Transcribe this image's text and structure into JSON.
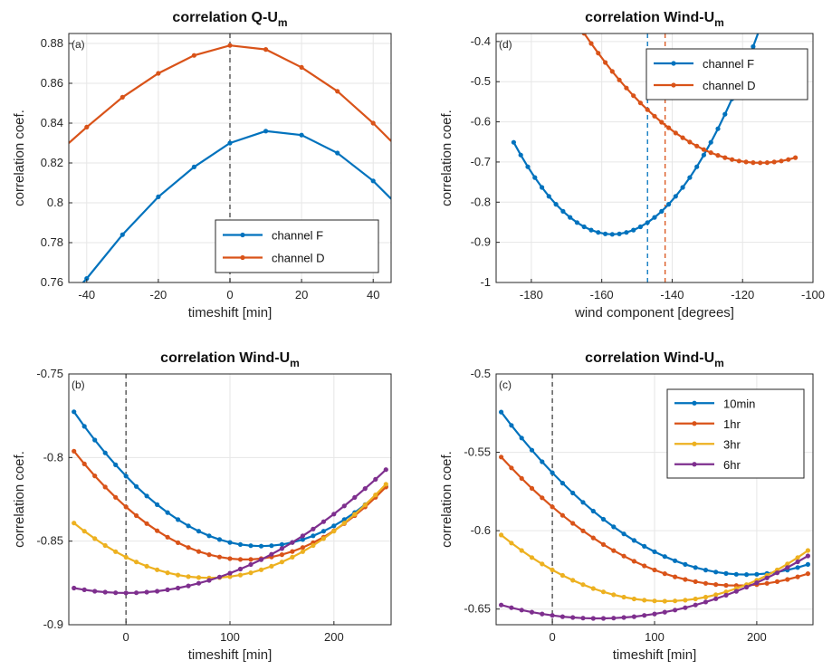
{
  "colors": {
    "blue": "#0072BD",
    "orange": "#D95319",
    "yellow": "#EDB120",
    "purple": "#7E2F8E",
    "grid": "#e6e6e6",
    "axis": "#262626"
  },
  "chart_data": [
    {
      "type": "line",
      "panel": "(a)",
      "title": "correlation Q-U",
      "title_subscript": "m",
      "xlabel": "timeshift [min]",
      "ylabel": "correlation coef.",
      "xlim": [
        -45,
        45
      ],
      "ylim": [
        0.76,
        0.885
      ],
      "xticks": [
        -40,
        -20,
        0,
        20,
        40
      ],
      "yticks": [
        0.76,
        0.78,
        0.8,
        0.82,
        0.84,
        0.86,
        0.88
      ],
      "ytick_labels": [
        "0.76",
        "0.78",
        "0.8",
        "0.82",
        "0.84",
        "0.86",
        "0.88"
      ],
      "grid": true,
      "vline": {
        "x": 0,
        "color": "#444444",
        "dash": true
      },
      "legend_position": "bottom-right",
      "x": [
        -40,
        -30,
        -20,
        -10,
        0,
        10,
        20,
        30,
        40
      ],
      "series": [
        {
          "name": "channel F",
          "color": "blue",
          "values": [
            0.762,
            0.784,
            0.803,
            0.818,
            0.83,
            0.836,
            0.834,
            0.825,
            0.811
          ],
          "extend_left": 0.752,
          "extend_right": 0.802
        },
        {
          "name": "channel D",
          "color": "orange",
          "values": [
            0.838,
            0.853,
            0.865,
            0.874,
            0.879,
            0.877,
            0.868,
            0.856,
            0.84
          ],
          "extend_left": 0.83,
          "extend_right": 0.831
        }
      ]
    },
    {
      "type": "line",
      "panel": "(d)",
      "title": "correlation Wind-U",
      "title_subscript": "m",
      "xlabel": "wind component [degrees]",
      "ylabel": "correlation coef.",
      "xlim": [
        -190,
        -100
      ],
      "ylim": [
        -1,
        -0.38
      ],
      "xticks": [
        -180,
        -160,
        -140,
        -120,
        -100
      ],
      "yticks": [
        -1,
        -0.9,
        -0.8,
        -0.7,
        -0.6,
        -0.5,
        -0.4
      ],
      "ytick_labels": [
        "-1",
        "-0.9",
        "-0.8",
        "-0.7",
        "-0.6",
        "-0.5",
        "-0.4"
      ],
      "grid": true,
      "vlines": [
        {
          "x": -147,
          "color": "blue",
          "dash": true
        },
        {
          "x": -142,
          "color": "orange",
          "dash": true
        }
      ],
      "legend_position": "top-right",
      "x_range": [
        -185,
        -105
      ],
      "x_step": 2,
      "series": [
        {
          "name": "channel F",
          "color": "blue",
          "quadratic": {
            "vertex_x": -157,
            "vertex_y": -0.88,
            "a": 0.000292
          }
        },
        {
          "name": "channel D",
          "color": "orange",
          "quadratic": {
            "vertex_x": -115,
            "vertex_y": -0.702,
            "a": 0.000129
          }
        }
      ]
    },
    {
      "type": "line",
      "panel": "(b)",
      "title": "correlation Wind-U",
      "title_subscript": "m",
      "xlabel": "timeshift [min]",
      "ylabel": "correlation coef.",
      "xlim": [
        -55,
        255
      ],
      "ylim": [
        -0.9,
        -0.75
      ],
      "xticks": [
        0,
        100,
        200
      ],
      "yticks": [
        -0.9,
        -0.85,
        -0.8,
        -0.75
      ],
      "ytick_labels": [
        "-0.9",
        "-0.85",
        "-0.8",
        "-0.75"
      ],
      "grid": true,
      "vline": {
        "x": 0,
        "color": "#444444",
        "dash": true
      },
      "x_range": [
        -50,
        250
      ],
      "x_step": 10,
      "series": [
        {
          "name": "10min",
          "color": "blue",
          "quadratic": {
            "vertex_x": 130,
            "vertex_y": -0.853,
            "a": 2.48e-06
          }
        },
        {
          "name": "1hr",
          "color": "orange",
          "quadratic": {
            "vertex_x": 115,
            "vertex_y": -0.861,
            "a": 2.38e-06
          }
        },
        {
          "name": "3hr",
          "color": "yellow",
          "quadratic": {
            "vertex_x": 80,
            "vertex_y": -0.872,
            "a": 1.94e-06
          }
        },
        {
          "name": "6hr",
          "color": "purple",
          "quadratic": {
            "vertex_x": 0,
            "vertex_y": -0.881,
            "a": 1.18e-06
          }
        }
      ]
    },
    {
      "type": "line",
      "panel": "(c)",
      "title": "correlation Wind-U",
      "title_subscript": "m",
      "xlabel": "timeshift [min]",
      "ylabel": "correlation coef.",
      "xlim": [
        -55,
        255
      ],
      "ylim": [
        -0.66,
        -0.5
      ],
      "xticks": [
        0,
        100,
        200
      ],
      "yticks": [
        -0.65,
        -0.6,
        -0.55,
        -0.5
      ],
      "ytick_labels": [
        "-0.65",
        "-0.6",
        "-0.55",
        "-0.5"
      ],
      "grid": true,
      "vline": {
        "x": 0,
        "color": "#444444",
        "dash": true
      },
      "legend_position": "top-right",
      "x_range": [
        -50,
        250
      ],
      "x_step": 10,
      "series": [
        {
          "name": "10min",
          "color": "blue",
          "quadratic": {
            "vertex_x": 190,
            "vertex_y": -0.628,
            "a": 1.8e-06
          }
        },
        {
          "name": "1hr",
          "color": "orange",
          "quadratic": {
            "vertex_x": 180,
            "vertex_y": -0.635,
            "a": 1.55e-06
          }
        },
        {
          "name": "3hr",
          "color": "yellow",
          "quadratic": {
            "vertex_x": 110,
            "vertex_y": -0.645,
            "a": 1.65e-06
          }
        },
        {
          "name": "6hr",
          "color": "purple",
          "quadratic": {
            "vertex_x": 45,
            "vertex_y": -0.656,
            "a": 9.5e-07
          }
        }
      ]
    }
  ]
}
